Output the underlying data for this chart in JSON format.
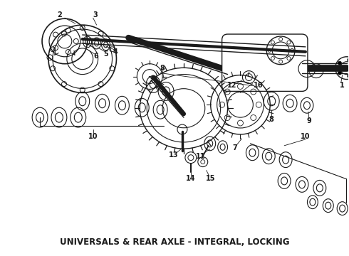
{
  "title": "UNIVERSALS & REAR AXLE - INTEGRAL, LOCKING",
  "title_fontsize": 8.5,
  "title_fontweight": "bold",
  "bg_color": "#ffffff",
  "line_color": "#1a1a1a",
  "fig_width": 4.9,
  "fig_height": 3.6,
  "dpi": 100
}
